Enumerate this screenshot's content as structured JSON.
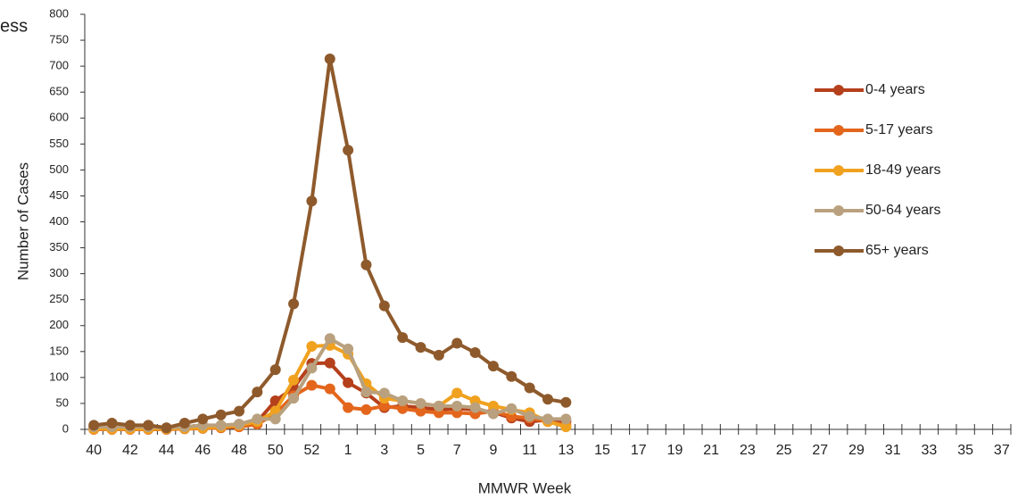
{
  "chart_data": {
    "type": "line",
    "title": "ess",
    "y_label": "Number of Cases",
    "x_label": "MMWR Week",
    "categories": [
      "40",
      null,
      "42",
      null,
      "44",
      null,
      "46",
      null,
      "48",
      null,
      "50",
      null,
      "52",
      null,
      "1",
      null,
      "3",
      null,
      "5",
      null,
      "7",
      null,
      "9",
      null,
      "11",
      null,
      "13",
      null,
      "15",
      null,
      "17",
      null,
      "19",
      null,
      "21",
      null,
      "23",
      null,
      "25",
      null,
      "27",
      null,
      "29",
      null,
      "31",
      null,
      "33",
      null,
      "35",
      null,
      "37"
    ],
    "ylim": [
      0,
      800
    ],
    "yticks": [
      0,
      50,
      100,
      150,
      200,
      250,
      300,
      350,
      400,
      450,
      500,
      550,
      600,
      650,
      700,
      750,
      800
    ],
    "legend": "right",
    "series": [
      {
        "name": "0-4 years",
        "color": "#b5401c",
        "values": [
          3,
          3,
          3,
          3,
          2,
          3,
          5,
          7,
          10,
          15,
          55,
          80,
          127,
          128,
          90,
          70,
          42,
          45,
          42,
          38,
          40,
          38,
          33,
          22,
          15,
          18,
          15,
          null,
          null,
          null,
          null,
          null,
          null,
          null,
          null,
          null,
          null,
          null,
          null,
          null,
          null,
          null,
          null,
          null,
          null,
          null,
          null,
          null,
          null,
          null,
          null
        ]
      },
      {
        "name": "5-17 years",
        "color": "#e3661c",
        "values": [
          0,
          0,
          0,
          0,
          0,
          1,
          2,
          3,
          5,
          10,
          30,
          65,
          85,
          78,
          42,
          38,
          45,
          40,
          35,
          32,
          32,
          30,
          35,
          25,
          22,
          15,
          8,
          null,
          null,
          null,
          null,
          null,
          null,
          null,
          null,
          null,
          null,
          null,
          null,
          null,
          null,
          null,
          null,
          null,
          null,
          null,
          null,
          null,
          null,
          null,
          null
        ]
      },
      {
        "name": "18-49 years",
        "color": "#f0a11e",
        "values": [
          1,
          1,
          1,
          1,
          1,
          2,
          3,
          5,
          8,
          15,
          35,
          95,
          160,
          162,
          145,
          88,
          60,
          55,
          50,
          45,
          70,
          55,
          45,
          38,
          32,
          15,
          5,
          null,
          null,
          null,
          null,
          null,
          null,
          null,
          null,
          null,
          null,
          null,
          null,
          null,
          null,
          null,
          null,
          null,
          null,
          null,
          null,
          null,
          null,
          null,
          null
        ]
      },
      {
        "name": "50-64 years",
        "color": "#b9a17f",
        "values": [
          5,
          5,
          5,
          5,
          3,
          5,
          8,
          8,
          10,
          20,
          20,
          60,
          118,
          175,
          155,
          72,
          70,
          55,
          50,
          45,
          45,
          42,
          30,
          40,
          25,
          20,
          20,
          null,
          null,
          null,
          null,
          null,
          null,
          null,
          null,
          null,
          null,
          null,
          null,
          null,
          null,
          null,
          null,
          null,
          null,
          null,
          null,
          null,
          null,
          null,
          null
        ]
      },
      {
        "name": "65+ years",
        "color": "#8e5a2c",
        "values": [
          8,
          12,
          8,
          8,
          3,
          12,
          20,
          28,
          35,
          72,
          115,
          242,
          440,
          714,
          538,
          317,
          238,
          177,
          158,
          143,
          166,
          148,
          122,
          102,
          80,
          58,
          52,
          null,
          null,
          null,
          null,
          null,
          null,
          null,
          null,
          null,
          null,
          null,
          null,
          null,
          null,
          null,
          null,
          null,
          null,
          null,
          null,
          null,
          null,
          null,
          null
        ]
      }
    ]
  }
}
